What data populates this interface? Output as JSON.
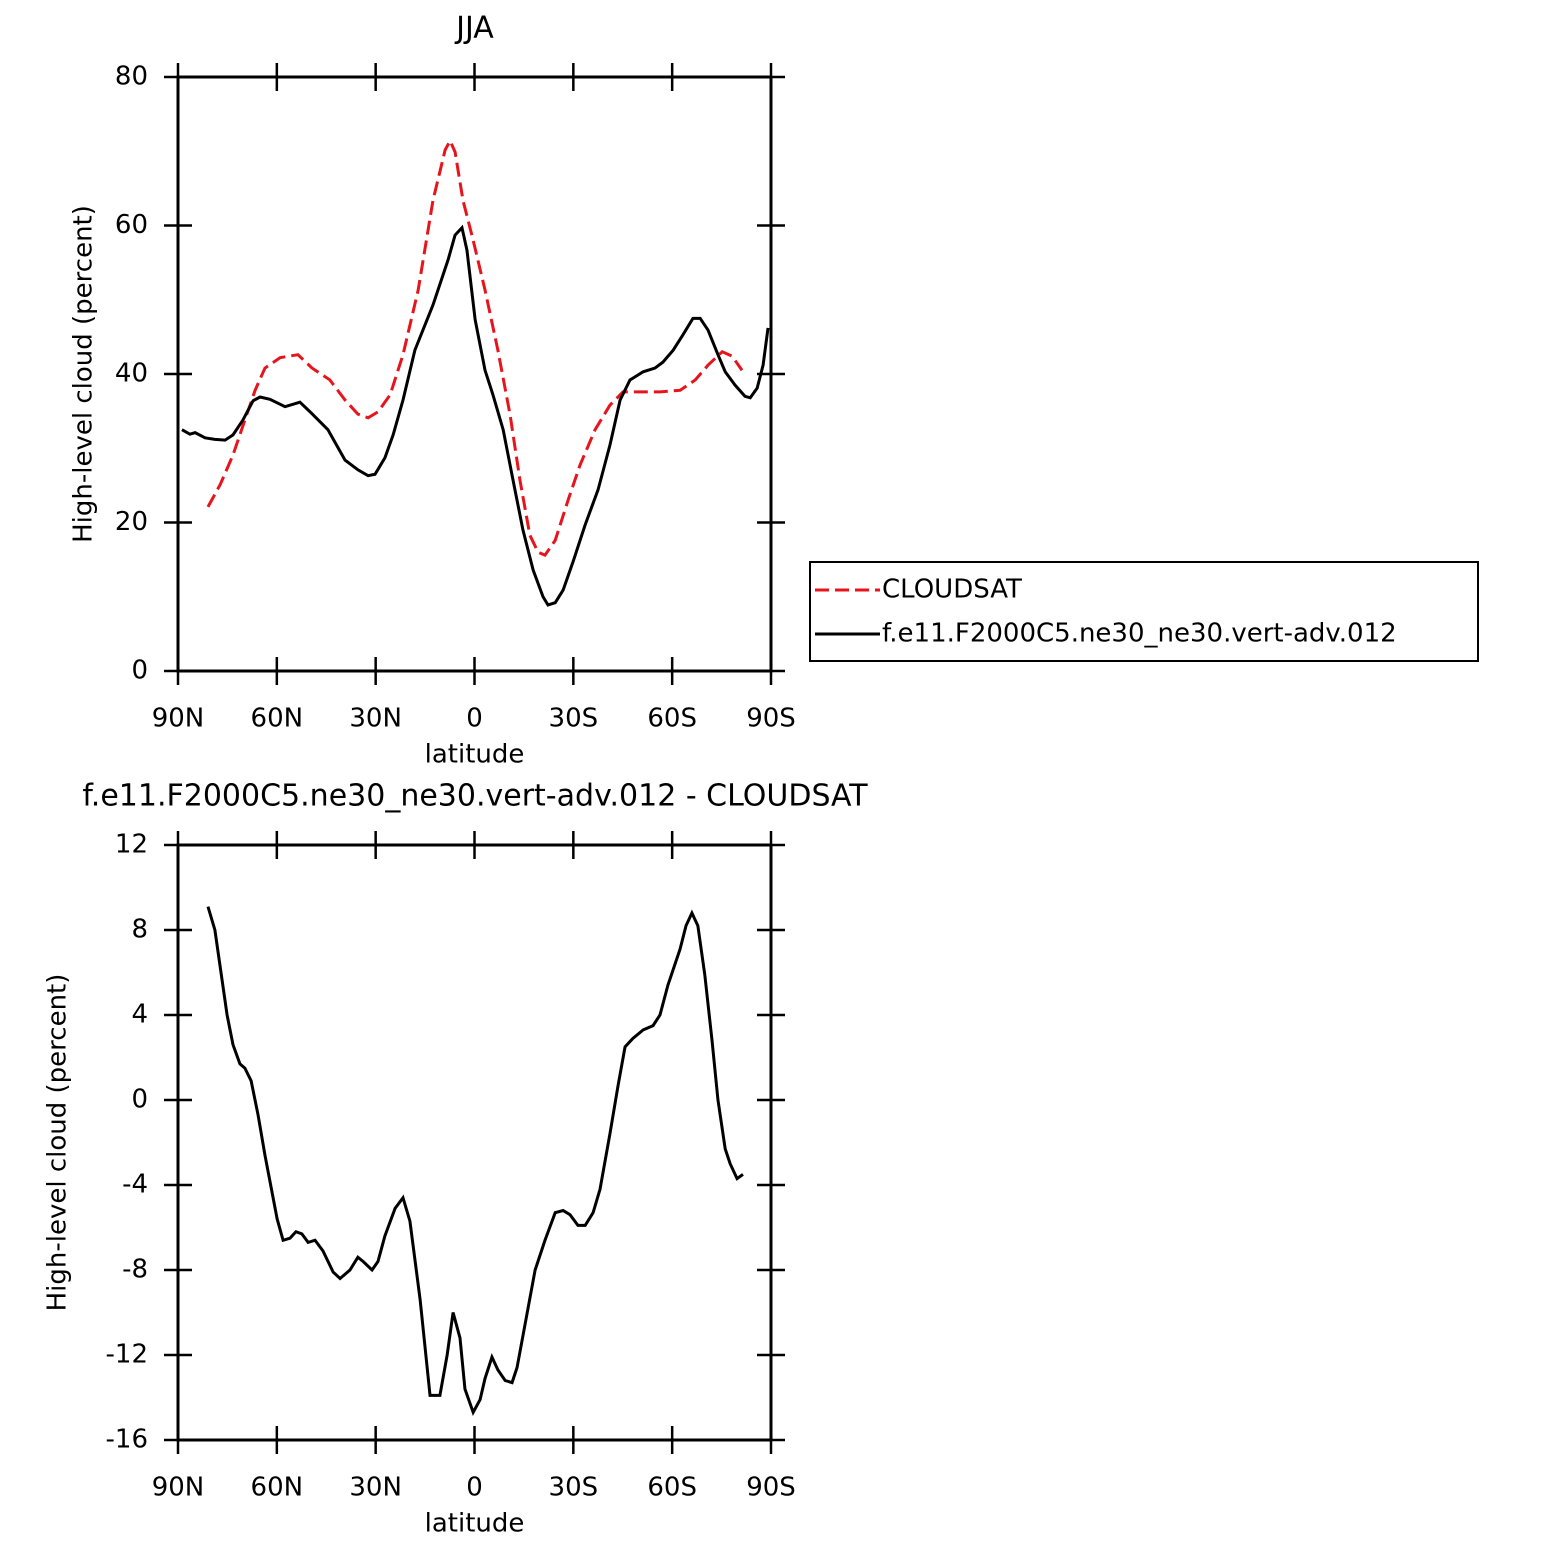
{
  "chart_data": [
    {
      "type": "line",
      "title": "JJA",
      "xlabel": "latitude",
      "ylabel": "High-level cloud (percent)",
      "xlim": [
        90,
        -90
      ],
      "xticks": [
        {
          "value": 90,
          "label": "90N"
        },
        {
          "value": 60,
          "label": "60N"
        },
        {
          "value": 30,
          "label": "30N"
        },
        0,
        {
          "value": -30,
          "label": "30S"
        },
        {
          "value": -60,
          "label": "60S"
        },
        {
          "value": -90,
          "label": "90S"
        }
      ],
      "ylim": [
        0,
        80
      ],
      "yticks": [
        0,
        20,
        40,
        60,
        80
      ],
      "legend": "right",
      "series": [
        {
          "name": "CLOUDSAT",
          "color": "#e8141c",
          "dash": true,
          "x": [
            80.9,
            77.2,
            73.3,
            69.7,
            66.6,
            63.6,
            59.0,
            53.6,
            49.3,
            43.9,
            39.3,
            35.4,
            32.3,
            29.3,
            25.6,
            21.7,
            17.1,
            12.6,
            8.9,
            7.4,
            5.9,
            3.5,
            0.4,
            -3.2,
            -7.1,
            -10.8,
            -13.8,
            -16.8,
            -19.3,
            -21.4,
            -24.5,
            -28.4,
            -32.0,
            -36.6,
            -41.1,
            -45.1,
            -50.3,
            -56.3,
            -62.4,
            -67.0,
            -70.9,
            -75.2,
            -78.2,
            -81.2
          ],
          "values": [
            22.1,
            25.1,
            29.1,
            33.8,
            37.8,
            40.8,
            42.2,
            42.6,
            40.8,
            39.2,
            36.5,
            34.6,
            34.1,
            34.9,
            37.2,
            42.6,
            51.3,
            63.4,
            70.2,
            71.4,
            69.9,
            63.4,
            58.0,
            51.3,
            43.2,
            34.5,
            25.7,
            18.3,
            16.0,
            15.6,
            17.6,
            23.0,
            27.7,
            32.5,
            35.8,
            37.6,
            37.6,
            37.6,
            37.8,
            39.2,
            41.2,
            43.0,
            42.4,
            40.5
          ]
        },
        {
          "name": "f.e11.F2000C5.ne30_ne30.vert-adv.012",
          "color": "#000000",
          "dash": false,
          "x": [
            88.8,
            86.4,
            84.8,
            81.8,
            78.8,
            75.7,
            73.3,
            70.3,
            67.2,
            65.1,
            62.1,
            57.5,
            53.0,
            49.9,
            44.5,
            39.3,
            35.4,
            32.3,
            30.2,
            27.2,
            24.7,
            21.7,
            18.1,
            12.6,
            8.0,
            5.9,
            3.8,
            2.3,
            -0.2,
            -3.2,
            -5.6,
            -8.7,
            -11.7,
            -14.7,
            -17.8,
            -20.8,
            -22.3,
            -24.5,
            -26.9,
            -29.9,
            -33.6,
            -37.5,
            -41.1,
            -44.2,
            -47.2,
            -51.2,
            -54.8,
            -57.2,
            -60.3,
            -63.3,
            -66.3,
            -68.5,
            -70.9,
            -73.9,
            -76.1,
            -79.1,
            -82.1,
            -83.7,
            -85.8,
            -87.6,
            -89.1
          ],
          "values": [
            32.5,
            31.9,
            32.1,
            31.4,
            31.2,
            31.1,
            31.8,
            33.8,
            36.4,
            36.9,
            36.6,
            35.6,
            36.2,
            34.9,
            32.5,
            28.4,
            27.1,
            26.3,
            26.5,
            28.7,
            31.8,
            36.5,
            43.2,
            49.3,
            55.4,
            58.7,
            59.7,
            56.7,
            47.3,
            40.5,
            37.2,
            32.5,
            25.7,
            19.0,
            13.6,
            10.0,
            8.9,
            9.2,
            10.9,
            14.7,
            19.7,
            24.4,
            30.4,
            36.5,
            39.2,
            40.3,
            40.8,
            41.6,
            43.2,
            45.3,
            47.5,
            47.5,
            45.9,
            42.6,
            40.3,
            38.5,
            37.0,
            36.8,
            38.1,
            41.2,
            46.2
          ]
        }
      ]
    },
    {
      "type": "line",
      "title": "f.e11.F2000C5.ne30_ne30.vert-adv.012 - CLOUDSAT",
      "xlabel": "latitude",
      "ylabel": "High-level cloud (percent)",
      "xlim": [
        90,
        -90
      ],
      "xticks": [
        {
          "value": 90,
          "label": "90N"
        },
        {
          "value": 60,
          "label": "60N"
        },
        {
          "value": 30,
          "label": "30N"
        },
        0,
        {
          "value": -30,
          "label": "30S"
        },
        {
          "value": -60,
          "label": "60S"
        },
        {
          "value": -90,
          "label": "90S"
        }
      ],
      "ylim": [
        -16,
        12
      ],
      "yticks": [
        -16,
        -12,
        -8,
        -4,
        0,
        4,
        8,
        12
      ],
      "series": [
        {
          "color": "#000000",
          "dash": false,
          "x": [
            80.9,
            78.8,
            75.1,
            73.3,
            71.2,
            69.7,
            67.8,
            65.7,
            63.6,
            59.9,
            58.1,
            56.0,
            54.2,
            52.4,
            50.5,
            48.4,
            46.0,
            42.9,
            40.8,
            37.8,
            35.4,
            33.8,
            31.1,
            29.3,
            27.2,
            24.1,
            21.7,
            19.6,
            16.5,
            13.5,
            10.5,
            8.3,
            6.5,
            4.4,
            2.9,
            0.4,
            -1.7,
            -3.2,
            -5.3,
            -7.1,
            -9.3,
            -11.4,
            -12.9,
            -14.7,
            -18.4,
            -21.4,
            -24.5,
            -26.9,
            -29.0,
            -31.4,
            -33.6,
            -36.0,
            -38.1,
            -41.1,
            -43.6,
            -45.7,
            -48.1,
            -51.2,
            -54.2,
            -56.3,
            -58.7,
            -62.4,
            -64.2,
            -66.0,
            -67.8,
            -69.9,
            -72.1,
            -73.9,
            -76.1,
            -77.6,
            -79.7,
            -81.5
          ],
          "values": [
            9.1,
            8.0,
            4.0,
            2.6,
            1.7,
            1.5,
            0.9,
            -0.7,
            -2.6,
            -5.6,
            -6.6,
            -6.5,
            -6.2,
            -6.3,
            -6.7,
            -6.6,
            -7.1,
            -8.1,
            -8.4,
            -8.0,
            -7.4,
            -7.6,
            -8.0,
            -7.6,
            -6.4,
            -5.1,
            -4.6,
            -5.7,
            -9.4,
            -13.9,
            -13.9,
            -12.0,
            -10.0,
            -11.2,
            -13.6,
            -14.7,
            -14.1,
            -13.1,
            -12.1,
            -12.7,
            -13.2,
            -13.3,
            -12.6,
            -11.1,
            -8.0,
            -6.6,
            -5.3,
            -5.2,
            -5.4,
            -5.9,
            -5.9,
            -5.3,
            -4.2,
            -1.6,
            0.7,
            2.5,
            2.9,
            3.3,
            3.5,
            4.0,
            5.4,
            7.1,
            8.2,
            8.8,
            8.2,
            5.9,
            2.8,
            0.0,
            -2.3,
            -3.0,
            -3.7,
            -3.5
          ]
        }
      ]
    }
  ]
}
